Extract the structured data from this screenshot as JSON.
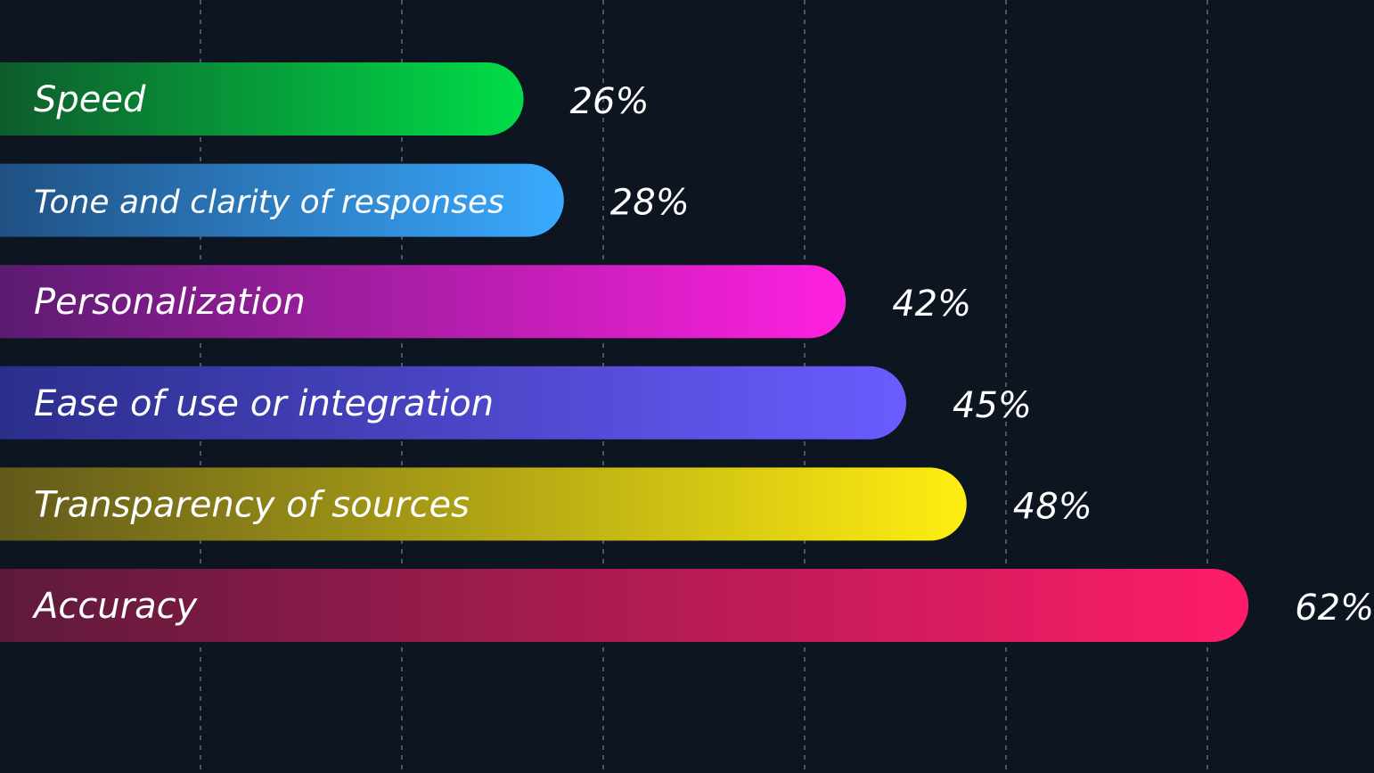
{
  "chart_data": {
    "type": "bar",
    "orientation": "horizontal",
    "categories": [
      "Speed",
      "Tone and clarity of responses",
      "Personalization",
      "Ease of use or integration",
      "Transparency of sources",
      "Accuracy"
    ],
    "values": [
      26,
      28,
      42,
      45,
      48,
      62
    ],
    "value_labels": [
      "26%",
      "28%",
      "42%",
      "45%",
      "48%",
      "62%"
    ],
    "colors": [
      {
        "start": "#0e5a2c",
        "end": "#00dd48"
      },
      {
        "start": "#1f4f82",
        "end": "#3aaaff"
      },
      {
        "start": "#5a1b70",
        "end": "#ff20e0"
      },
      {
        "start": "#2a2e8a",
        "end": "#6a5cff"
      },
      {
        "start": "#5f581b",
        "end": "#ffee10"
      },
      {
        "start": "#5c1a3a",
        "end": "#ff1c6a"
      }
    ],
    "xlim": [
      0,
      62
    ],
    "grid": true,
    "title": "",
    "xlabel": "",
    "ylabel": ""
  }
}
